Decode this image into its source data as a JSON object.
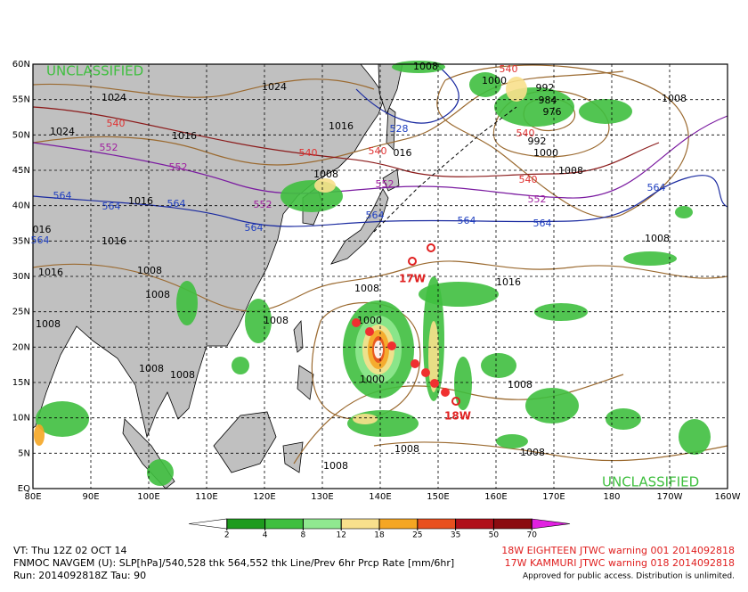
{
  "map": {
    "lat_labels": [
      "60N",
      "55N",
      "50N",
      "45N",
      "40N",
      "35N",
      "30N",
      "25N",
      "20N",
      "15N",
      "10N",
      "5N",
      "EQ"
    ],
    "lon_labels": [
      "80E",
      "90E",
      "100E",
      "110E",
      "120E",
      "130E",
      "140E",
      "150E",
      "160E",
      "170E",
      "180",
      "170W",
      "160W"
    ],
    "classification": [
      "UNCLASSIFIED",
      "UNCLASSIFIED"
    ],
    "contour_labels": [
      "1024",
      "540",
      "1024",
      "1016",
      "552",
      "552",
      "564",
      "564",
      "1016",
      "564",
      "1016",
      "016",
      "564",
      "1016",
      "1008",
      "1008",
      "1008",
      "1008",
      "1008",
      "1024",
      "1016",
      "540",
      "528",
      "540",
      "016",
      "1008",
      "552",
      "552",
      "564",
      "564",
      "564",
      "564",
      "1008",
      "1000",
      "992",
      "984",
      "976",
      "540",
      "992",
      "1000",
      "1008",
      "540",
      "552",
      "564",
      "1008",
      "1008",
      "1016",
      "1008",
      "1000",
      "1000",
      "1008",
      "1008",
      "1008",
      "1008",
      "1008",
      "540"
    ],
    "storm_labels": [
      "17W",
      "18W"
    ]
  },
  "colorbar": {
    "ticks": [
      2,
      4,
      8,
      12,
      18,
      25,
      35,
      50,
      70
    ],
    "colors": [
      "#ffffff",
      "#1e9b1e",
      "#3fbf3f",
      "#90e890",
      "#f8e08c",
      "#f5a623",
      "#e8501e",
      "#b0101a",
      "#8b0b10",
      "#e020e0"
    ]
  },
  "footer": {
    "left": [
      "VT: Thu 12Z 02 OCT 14",
      "FNMOC NAVGEM (U): SLP[hPa]/540,528 thk 564,552 thk Line/Prev 6hr Prcp Rate [mm/6hr]",
      "Run: 2014092818Z Tau: 90"
    ],
    "right": [
      "18W EIGHTEEN JTWC warning 001 2014092818",
      "17W KAMMURI JTWC warning 018 2014092818"
    ],
    "note": "Approved for public access. Distribution is unlimited."
  }
}
